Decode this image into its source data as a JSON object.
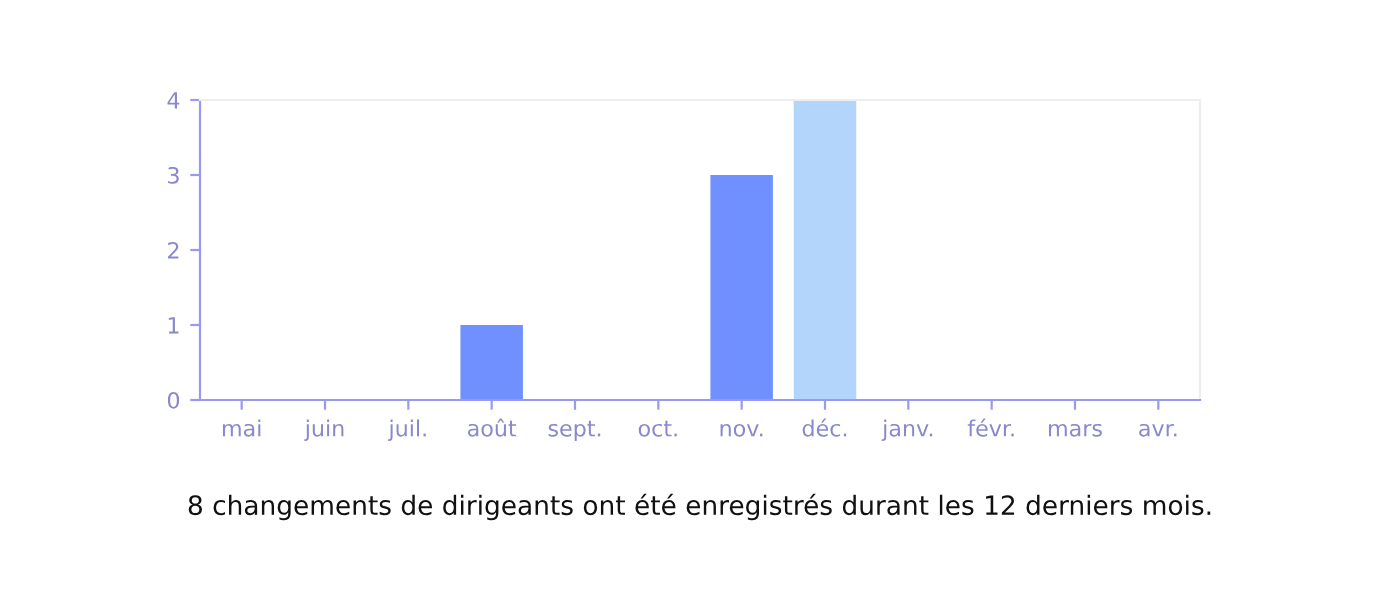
{
  "chart_data": {
    "type": "bar",
    "categories": [
      "mai",
      "juin",
      "juil.",
      "août",
      "sept.",
      "oct.",
      "nov.",
      "déc.",
      "janv.",
      "févr.",
      "mars",
      "avr."
    ],
    "values": [
      0,
      0,
      0,
      1,
      0,
      0,
      3,
      4,
      0,
      0,
      0,
      0
    ],
    "colors": [
      "#7090ff",
      "#7090ff",
      "#7090ff",
      "#7090ff",
      "#7090ff",
      "#7090ff",
      "#7090ff",
      "#b3d5fb",
      "#7090ff",
      "#7090ff",
      "#7090ff",
      "#7090ff"
    ],
    "ylim": [
      0,
      4
    ],
    "yticks": [
      0,
      1,
      2,
      3,
      4
    ],
    "grid": false,
    "annotations": [
      "8 changements de dirigeants ont été enregistrés durant les 12 derniers mois."
    ]
  }
}
